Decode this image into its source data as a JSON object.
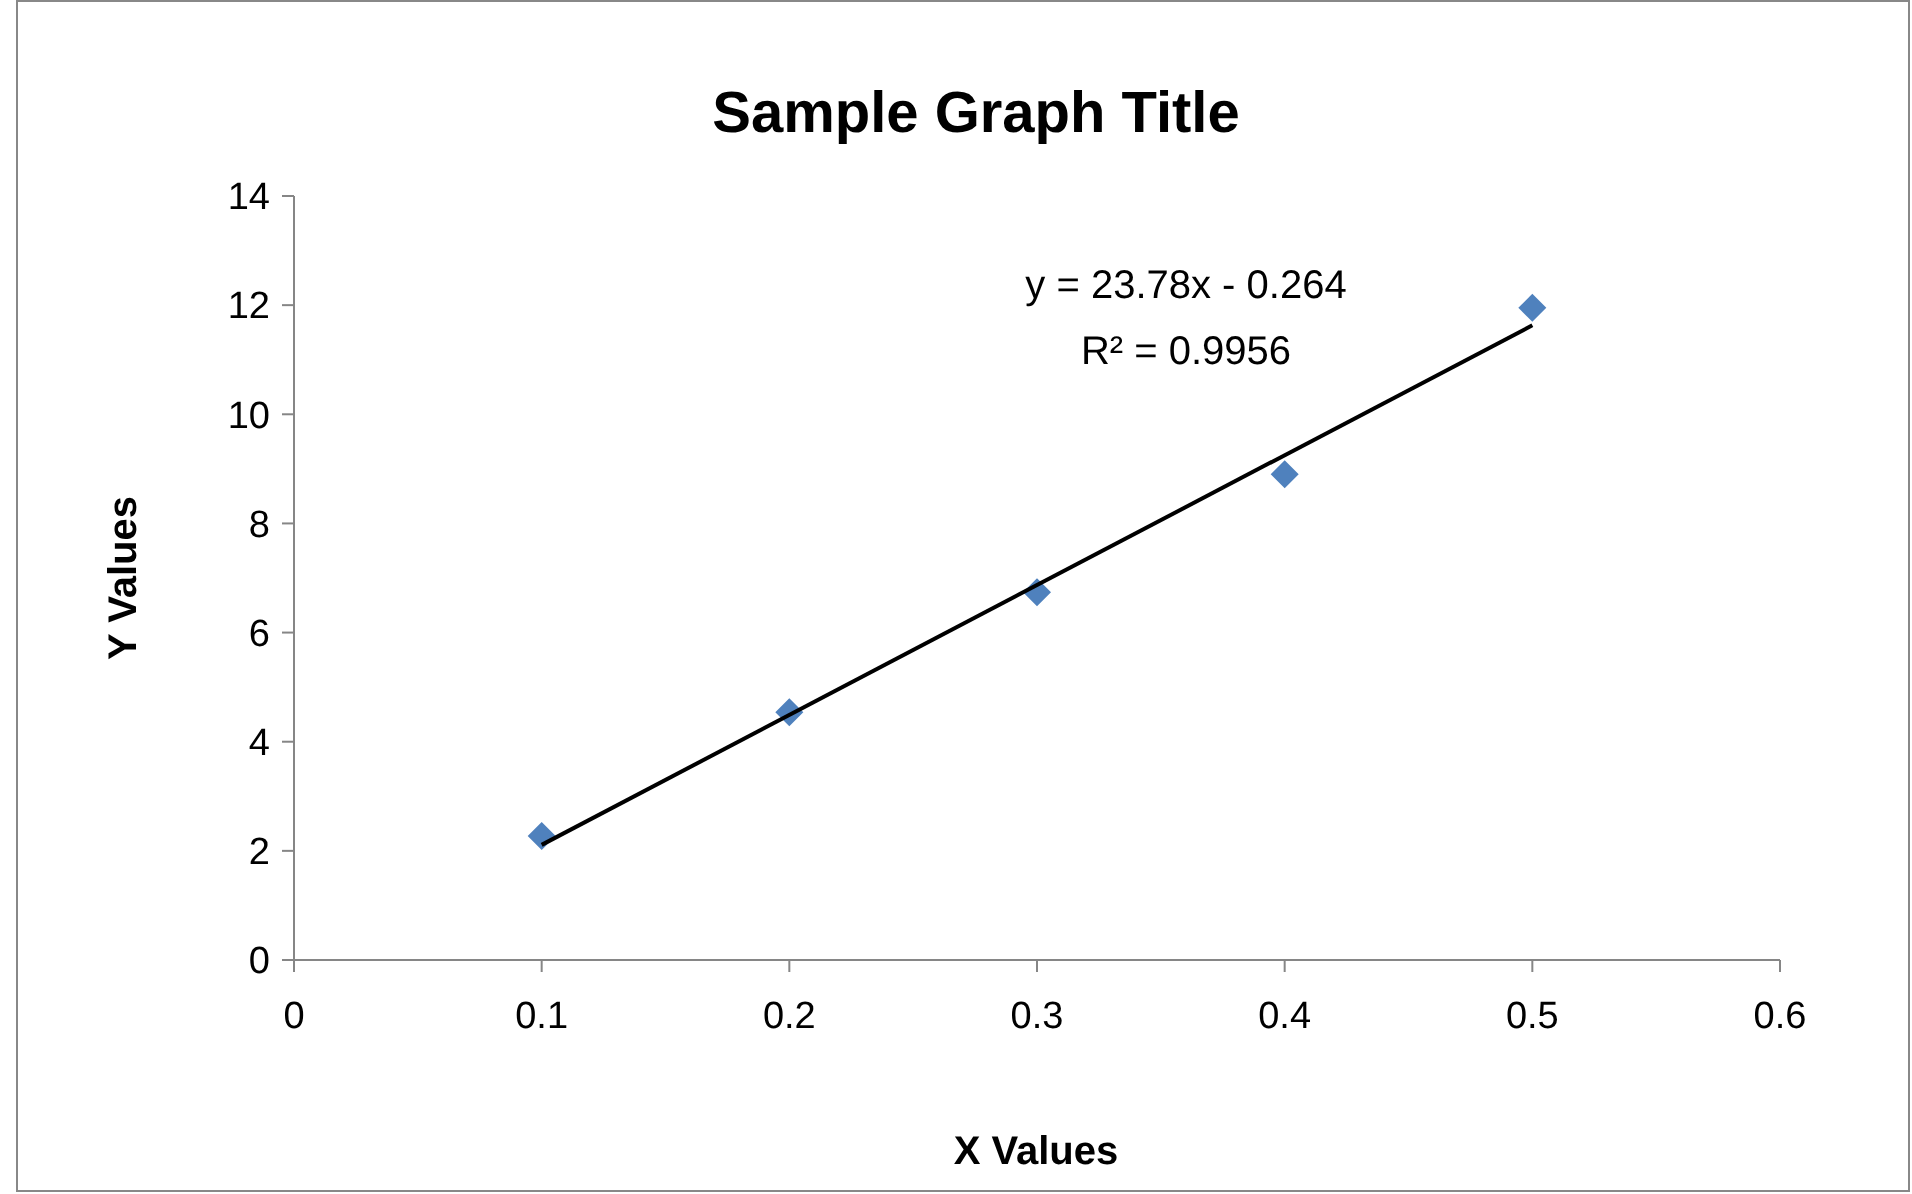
{
  "chart_data": {
    "type": "scatter",
    "title": "Sample Graph Title",
    "xlabel": "X Values",
    "ylabel": "Y Values",
    "x": [
      0.1,
      0.2,
      0.3,
      0.4,
      0.5
    ],
    "series": [
      {
        "color": "#4f81bd",
        "values": [
          2.27,
          4.54,
          6.74,
          8.9,
          11.95
        ],
        "marker": "diamond"
      },
      {
        "type": "line",
        "color": "#000000",
        "x": [
          0.1,
          0.5
        ],
        "values": [
          2.11,
          11.63
        ],
        "marker": "none",
        "line_style": "solid"
      }
    ],
    "xlim": [
      0,
      0.6
    ],
    "xticks": [
      0,
      0.1,
      0.2,
      0.3,
      0.4,
      0.5,
      0.6
    ],
    "ylim": [
      0,
      14
    ],
    "yticks": [
      0,
      2,
      4,
      6,
      8,
      10,
      12,
      14
    ],
    "annotations": [
      "y = 23.78x - 0.264",
      "R² = 0.9956"
    ],
    "grid": false
  }
}
